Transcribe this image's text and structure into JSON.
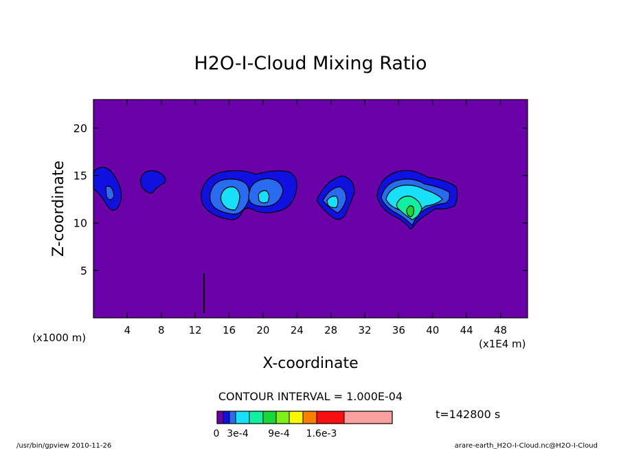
{
  "chart_data": {
    "type": "contour",
    "title": "H2O-I-Cloud Mixing Ratio",
    "xlabel": "X-coordinate",
    "ylabel": "Z-coordinate",
    "x_unit_label": "(x1E4 m)",
    "y_unit_label": "(x1000 m)",
    "xlim": [
      0,
      51.2
    ],
    "ylim": [
      0,
      23
    ],
    "x_ticks": [
      4,
      8,
      12,
      16,
      20,
      24,
      28,
      32,
      36,
      40,
      44,
      48
    ],
    "y_ticks": [
      5,
      10,
      15,
      20
    ],
    "contour_interval_text": "CONTOUR INTERVAL = 1.000E-04",
    "time_label": "t=142800 s",
    "colorbar": {
      "levels": [
        0,
        0.0001,
        0.0002,
        0.0003,
        0.0004,
        0.0005,
        0.0006,
        0.0007,
        0.0008,
        0.0009,
        0.0012,
        0.0016,
        0.0022
      ],
      "colors": [
        "#6a00a8",
        "#1010e0",
        "#2a6cf0",
        "#18e0f8",
        "#10f0a0",
        "#18d838",
        "#80f018",
        "#f8f800",
        "#f88000",
        "#f81010",
        "#f8a0a0"
      ],
      "tick_labels": [
        "0",
        "3e-4",
        "9e-4",
        "1.6e-3"
      ]
    },
    "clouds": [
      {
        "x": 1.5,
        "z": 13.7,
        "max_level": 2
      },
      {
        "x": 7.0,
        "z": 14.5,
        "max_level": 1
      },
      {
        "x": 16.5,
        "z": 12.8,
        "max_level": 3
      },
      {
        "x": 20.5,
        "z": 13.0,
        "max_level": 3
      },
      {
        "x": 28.5,
        "z": 12.5,
        "max_level": 3
      },
      {
        "x": 38.0,
        "z": 12.2,
        "max_level": 5
      }
    ]
  },
  "footer": {
    "left": "/usr/bin/gpview   2010-11-26",
    "right": "arare-earth_H2O-I-Cloud.nc@H2O-I-Cloud"
  }
}
